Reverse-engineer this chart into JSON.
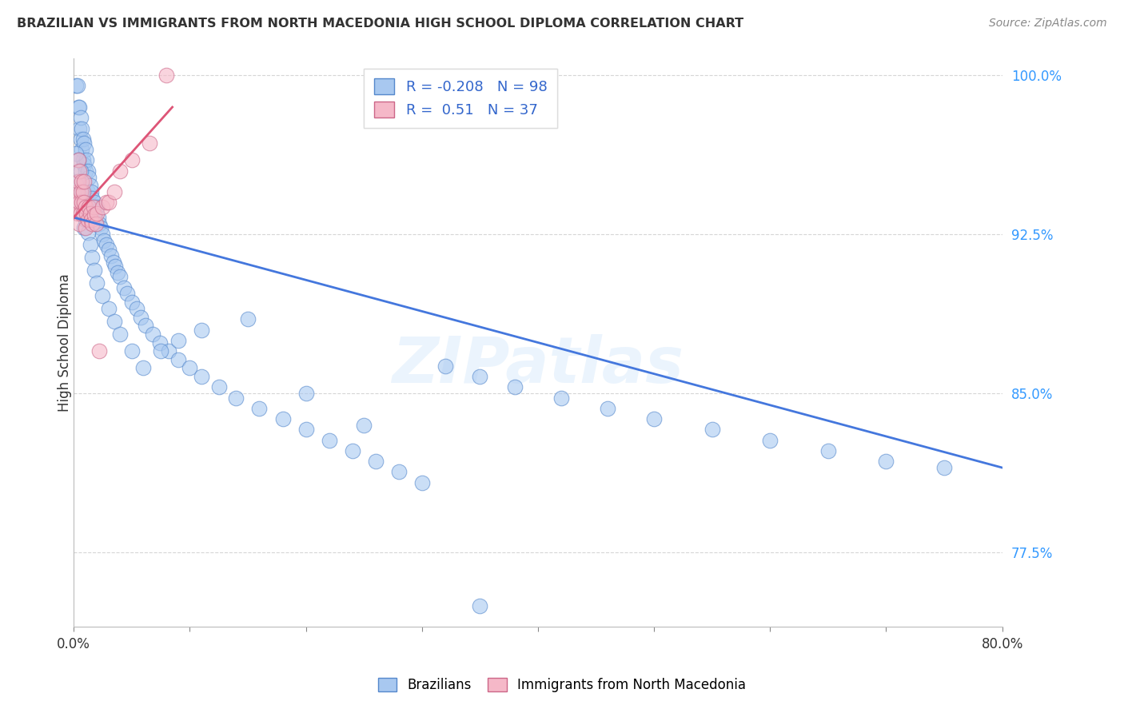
{
  "title": "BRAZILIAN VS IMMIGRANTS FROM NORTH MACEDONIA HIGH SCHOOL DIPLOMA CORRELATION CHART",
  "source": "Source: ZipAtlas.com",
  "ylabel": "High School Diploma",
  "xlim": [
    0.0,
    0.8
  ],
  "ylim": [
    0.74,
    1.008
  ],
  "yticks": [
    0.775,
    0.85,
    0.925,
    1.0
  ],
  "yticklabels": [
    "77.5%",
    "85.0%",
    "92.5%",
    "100.0%"
  ],
  "xticks": [
    0.0,
    0.1,
    0.2,
    0.3,
    0.4,
    0.5,
    0.6,
    0.7,
    0.8
  ],
  "xticklabels": [
    "0.0%",
    "",
    "",
    "",
    "",
    "",
    "",
    "",
    "80.0%"
  ],
  "legend_labels": [
    "Brazilians",
    "Immigrants from North Macedonia"
  ],
  "watermark": "ZIPatlas",
  "blue_color": "#a8c8f0",
  "pink_color": "#f5b8c8",
  "blue_edge_color": "#5588cc",
  "pink_edge_color": "#cc6688",
  "blue_line_color": "#4477dd",
  "pink_line_color": "#dd5577",
  "R_blue": -0.208,
  "N_blue": 98,
  "R_pink": 0.51,
  "N_pink": 37,
  "blue_trend_x": [
    0.0,
    0.8
  ],
  "blue_trend_y": [
    0.933,
    0.815
  ],
  "pink_trend_x": [
    0.0,
    0.085
  ],
  "pink_trend_y": [
    0.933,
    0.985
  ],
  "blue_x": [
    0.002,
    0.003,
    0.004,
    0.005,
    0.005,
    0.006,
    0.006,
    0.007,
    0.007,
    0.008,
    0.008,
    0.009,
    0.009,
    0.01,
    0.01,
    0.011,
    0.012,
    0.012,
    0.013,
    0.014,
    0.015,
    0.016,
    0.017,
    0.018,
    0.019,
    0.02,
    0.021,
    0.022,
    0.023,
    0.025,
    0.026,
    0.028,
    0.03,
    0.032,
    0.034,
    0.036,
    0.038,
    0.04,
    0.043,
    0.046,
    0.05,
    0.054,
    0.058,
    0.062,
    0.068,
    0.074,
    0.082,
    0.09,
    0.1,
    0.11,
    0.125,
    0.14,
    0.16,
    0.18,
    0.2,
    0.22,
    0.24,
    0.26,
    0.28,
    0.3,
    0.32,
    0.35,
    0.38,
    0.42,
    0.46,
    0.5,
    0.55,
    0.6,
    0.65,
    0.7,
    0.75,
    0.002,
    0.003,
    0.004,
    0.005,
    0.006,
    0.007,
    0.008,
    0.009,
    0.01,
    0.012,
    0.014,
    0.016,
    0.018,
    0.02,
    0.025,
    0.03,
    0.035,
    0.04,
    0.05,
    0.06,
    0.075,
    0.09,
    0.11,
    0.15,
    0.2,
    0.25,
    0.35
  ],
  "blue_y": [
    0.995,
    0.995,
    0.985,
    0.985,
    0.975,
    0.98,
    0.97,
    0.975,
    0.965,
    0.97,
    0.96,
    0.968,
    0.958,
    0.965,
    0.955,
    0.96,
    0.955,
    0.945,
    0.952,
    0.948,
    0.945,
    0.942,
    0.938,
    0.94,
    0.936,
    0.938,
    0.933,
    0.93,
    0.928,
    0.925,
    0.922,
    0.92,
    0.918,
    0.915,
    0.912,
    0.91,
    0.907,
    0.905,
    0.9,
    0.897,
    0.893,
    0.89,
    0.886,
    0.882,
    0.878,
    0.874,
    0.87,
    0.866,
    0.862,
    0.858,
    0.853,
    0.848,
    0.843,
    0.838,
    0.833,
    0.828,
    0.823,
    0.818,
    0.813,
    0.808,
    0.863,
    0.858,
    0.853,
    0.848,
    0.843,
    0.838,
    0.833,
    0.828,
    0.823,
    0.818,
    0.815,
    0.963,
    0.95,
    0.96,
    0.94,
    0.955,
    0.945,
    0.935,
    0.928,
    0.932,
    0.926,
    0.92,
    0.914,
    0.908,
    0.902,
    0.896,
    0.89,
    0.884,
    0.878,
    0.87,
    0.862,
    0.87,
    0.875,
    0.88,
    0.885,
    0.85,
    0.835,
    0.75
  ],
  "pink_x": [
    0.002,
    0.003,
    0.003,
    0.004,
    0.004,
    0.005,
    0.005,
    0.005,
    0.006,
    0.006,
    0.007,
    0.007,
    0.008,
    0.008,
    0.009,
    0.009,
    0.01,
    0.01,
    0.011,
    0.012,
    0.013,
    0.014,
    0.015,
    0.016,
    0.017,
    0.018,
    0.019,
    0.02,
    0.022,
    0.025,
    0.028,
    0.03,
    0.035,
    0.04,
    0.05,
    0.065,
    0.08
  ],
  "pink_y": [
    0.94,
    0.945,
    0.935,
    0.95,
    0.96,
    0.94,
    0.955,
    0.93,
    0.945,
    0.935,
    0.95,
    0.94,
    0.945,
    0.935,
    0.94,
    0.95,
    0.938,
    0.928,
    0.935,
    0.932,
    0.938,
    0.935,
    0.932,
    0.93,
    0.938,
    0.934,
    0.93,
    0.935,
    0.87,
    0.938,
    0.94,
    0.94,
    0.945,
    0.955,
    0.96,
    0.968,
    1.0
  ]
}
